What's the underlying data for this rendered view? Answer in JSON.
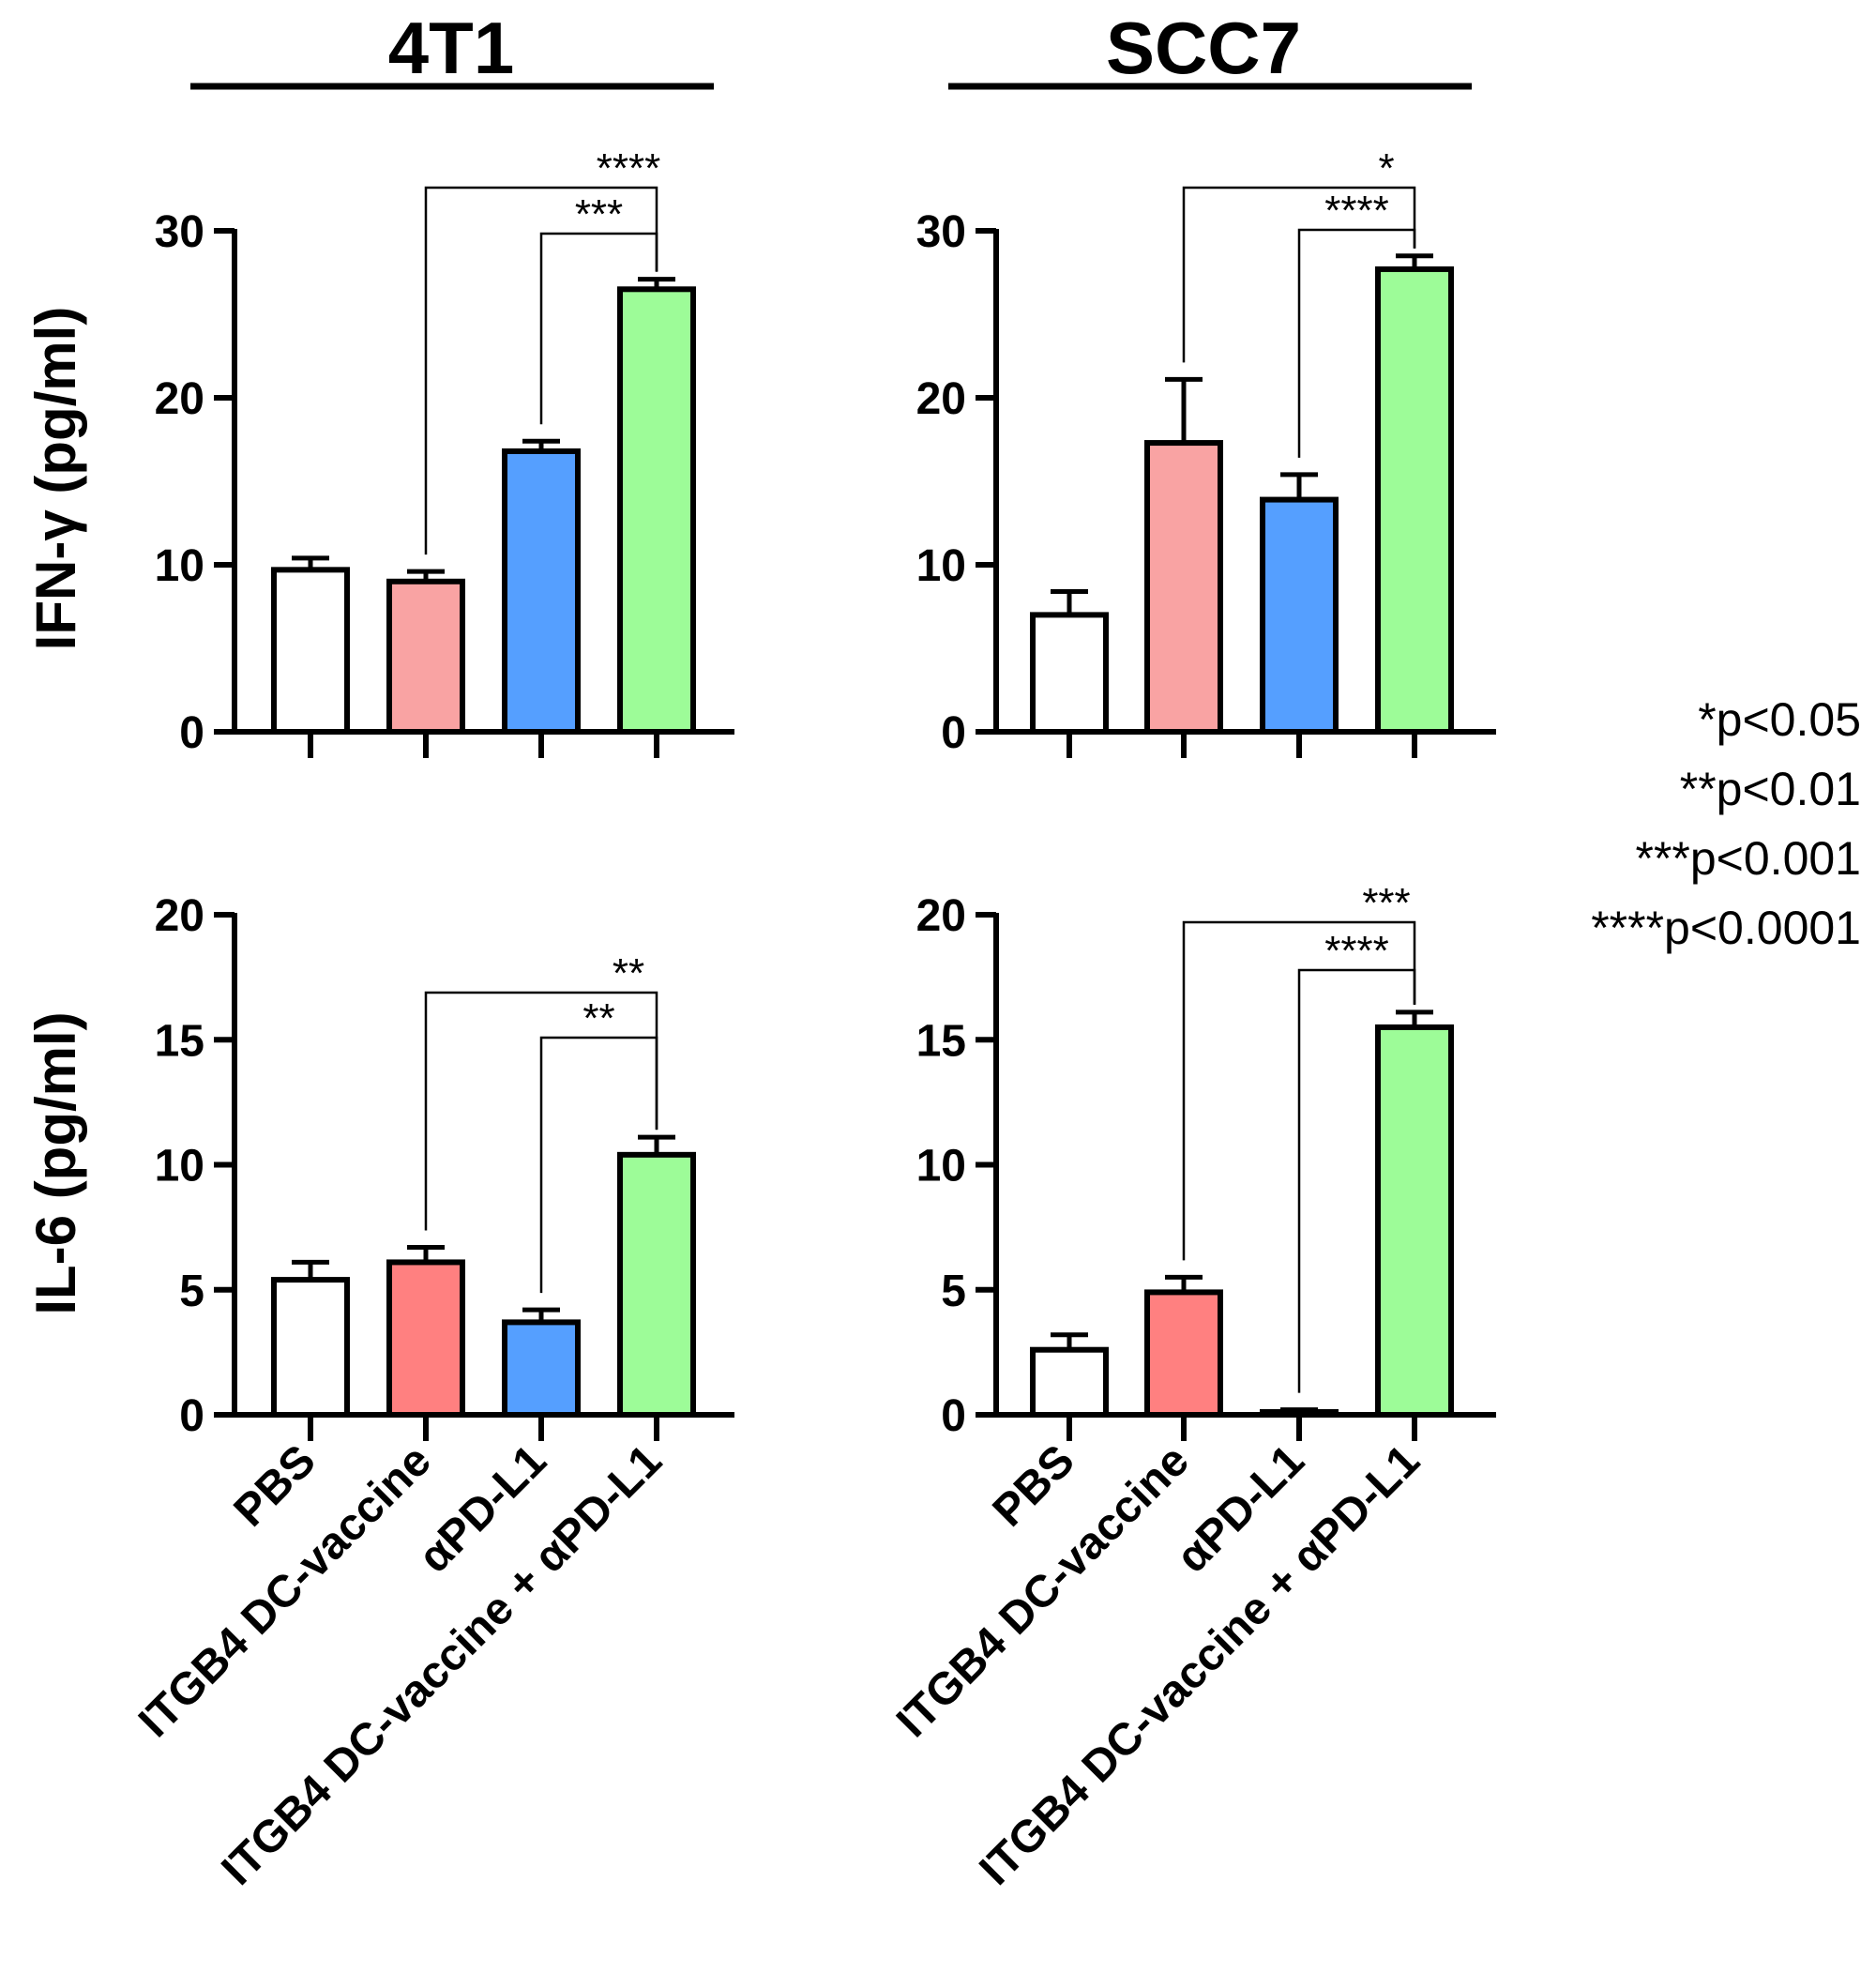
{
  "columns": [
    "4T1",
    "SCC7"
  ],
  "row_labels": [
    "IFN-γ (pg/ml)",
    "IL-6 (pg/ml)"
  ],
  "categories": [
    "PBS",
    "ITGB4 DC-vaccine",
    "αPD-L1",
    "ITGB4 DC-vaccine + αPD-L1"
  ],
  "legend": [
    "*p<0.05",
    "**p<0.01",
    "***p<0.001",
    "****p<0.0001"
  ],
  "colors": {
    "PBS": "#ffffff",
    "ITGB4 DC-vaccine (IFN-γ)": "#f9a3a3",
    "ITGB4 DC-vaccine (IL-6)": "#ff8080",
    "αPD-L1": "#559fff",
    "ITGB4 DC-vaccine + αPD-L1": "#9dfc98"
  },
  "chart_data": [
    {
      "type": "bar",
      "panel": "4T1",
      "ylabel": "IFN-γ (pg/ml)",
      "ylim": [
        0,
        30
      ],
      "yticks": [
        0,
        10,
        20,
        30
      ],
      "categories": [
        "PBS",
        "ITGB4 DC-vaccine",
        "αPD-L1",
        "ITGB4 DC-vaccine + αPD-L1"
      ],
      "values": [
        9.7,
        9.0,
        16.8,
        26.5
      ],
      "errors": [
        0.7,
        0.6,
        0.6,
        0.6
      ],
      "fills": [
        "#ffffff",
        "#f9a3a3",
        "#559fff",
        "#9dfc98"
      ],
      "brackets": [
        {
          "from": "ITGB4 DC-vaccine",
          "to": "ITGB4 DC-vaccine + αPD-L1",
          "label": "****"
        },
        {
          "from": "αPD-L1",
          "to": "ITGB4 DC-vaccine + αPD-L1",
          "label": "***"
        }
      ]
    },
    {
      "type": "bar",
      "panel": "SCC7",
      "ylabel": "IFN-γ (pg/ml)",
      "ylim": [
        0,
        30
      ],
      "yticks": [
        0,
        10,
        20,
        30
      ],
      "categories": [
        "PBS",
        "ITGB4 DC-vaccine",
        "αPD-L1",
        "ITGB4 DC-vaccine + αPD-L1"
      ],
      "values": [
        7.0,
        17.3,
        13.9,
        27.7
      ],
      "errors": [
        1.4,
        3.8,
        1.5,
        0.8
      ],
      "fills": [
        "#ffffff",
        "#f9a3a3",
        "#559fff",
        "#9dfc98"
      ],
      "brackets": [
        {
          "from": "ITGB4 DC-vaccine",
          "to": "ITGB4 DC-vaccine + αPD-L1",
          "label": "*"
        },
        {
          "from": "αPD-L1",
          "to": "ITGB4 DC-vaccine + αPD-L1",
          "label": "****"
        }
      ]
    },
    {
      "type": "bar",
      "panel": "4T1",
      "ylabel": "IL-6 (pg/ml)",
      "ylim": [
        0,
        20
      ],
      "yticks": [
        0,
        5,
        10,
        15,
        20
      ],
      "categories": [
        "PBS",
        "ITGB4 DC-vaccine",
        "αPD-L1",
        "ITGB4 DC-vaccine + αPD-L1"
      ],
      "values": [
        5.4,
        6.1,
        3.7,
        10.4
      ],
      "errors": [
        0.7,
        0.6,
        0.5,
        0.7
      ],
      "fills": [
        "#ffffff",
        "#ff8080",
        "#559fff",
        "#9dfc98"
      ],
      "brackets": [
        {
          "from": "ITGB4 DC-vaccine",
          "to": "ITGB4 DC-vaccine + αPD-L1",
          "label": "**"
        },
        {
          "from": "αPD-L1",
          "to": "ITGB4 DC-vaccine + αPD-L1",
          "label": "**"
        }
      ]
    },
    {
      "type": "bar",
      "panel": "SCC7",
      "ylabel": "IL-6 (pg/ml)",
      "ylim": [
        0,
        20
      ],
      "yticks": [
        0,
        5,
        10,
        15,
        20
      ],
      "categories": [
        "PBS",
        "ITGB4 DC-vaccine",
        "αPD-L1",
        "ITGB4 DC-vaccine + αPD-L1"
      ],
      "values": [
        2.6,
        4.9,
        0.1,
        15.5
      ],
      "errors": [
        0.6,
        0.6,
        0.1,
        0.6
      ],
      "fills": [
        "#ffffff",
        "#ff8080",
        "#559fff",
        "#9dfc98"
      ],
      "brackets": [
        {
          "from": "ITGB4 DC-vaccine",
          "to": "ITGB4 DC-vaccine + αPD-L1",
          "label": "***"
        },
        {
          "from": "αPD-L1",
          "to": "ITGB4 DC-vaccine + αPD-L1",
          "label": "****"
        }
      ]
    }
  ]
}
